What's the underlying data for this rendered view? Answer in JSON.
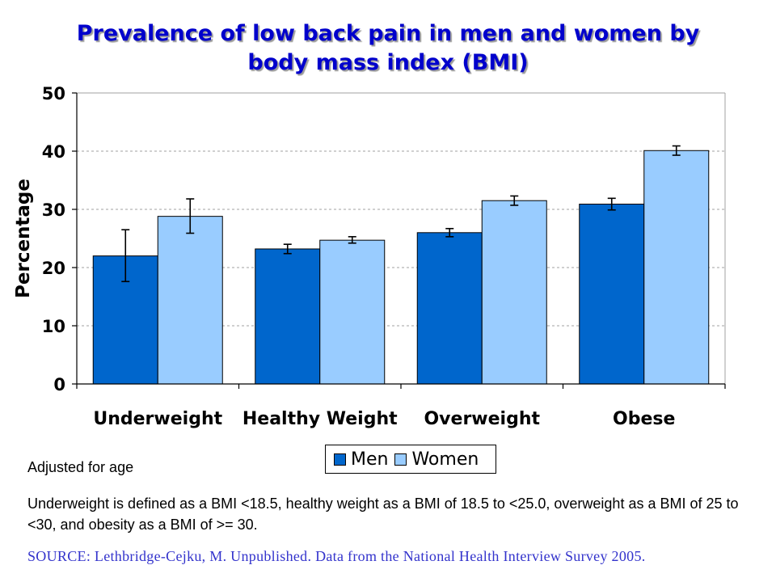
{
  "chart_data": {
    "type": "bar",
    "title": "Prevalence of low back pain in men and women by body mass index (BMI)",
    "title_lines": [
      "Prevalence of low back pain in men and women by",
      "body mass index (BMI)"
    ],
    "xlabel": "",
    "ylabel": "Percentage",
    "ylim": [
      0,
      50
    ],
    "yticks": [
      "0",
      "10",
      "20",
      "30",
      "40",
      "50"
    ],
    "grid": "horizontal dashed",
    "categories": [
      "Underweight",
      "Healthy Weight",
      "Overweight",
      "Obese"
    ],
    "series": [
      {
        "name": "Men",
        "color": "#0066cc",
        "values": [
          22.0,
          23.2,
          26.0,
          30.9
        ],
        "error_low": [
          17.6,
          22.4,
          25.3,
          29.9
        ],
        "error_high": [
          26.5,
          24.0,
          26.7,
          31.9
        ]
      },
      {
        "name": "Women",
        "color": "#99ccff",
        "values": [
          28.8,
          24.7,
          31.5,
          40.1
        ],
        "error_low": [
          25.9,
          24.2,
          30.7,
          39.3
        ],
        "error_high": [
          31.8,
          25.3,
          32.3,
          40.9
        ]
      }
    ],
    "legend_position": "bottom-center"
  },
  "notes": {
    "adjusted": "Adjusted for age",
    "definition": "Underweight is defined as a BMI <18.5, healthy weight as a BMI of 18.5 to <25.0, overweight as a BMI of 25 to <30, and obesity as a BMI of >= 30.",
    "source": "SOURCE: Lethbridge-Cejku, M. Unpublished. Data from the National Health Interview Survey 2005."
  },
  "colors": {
    "title": "#0000cc",
    "source": "#3333cc",
    "gridline": "#a0a0a0"
  }
}
